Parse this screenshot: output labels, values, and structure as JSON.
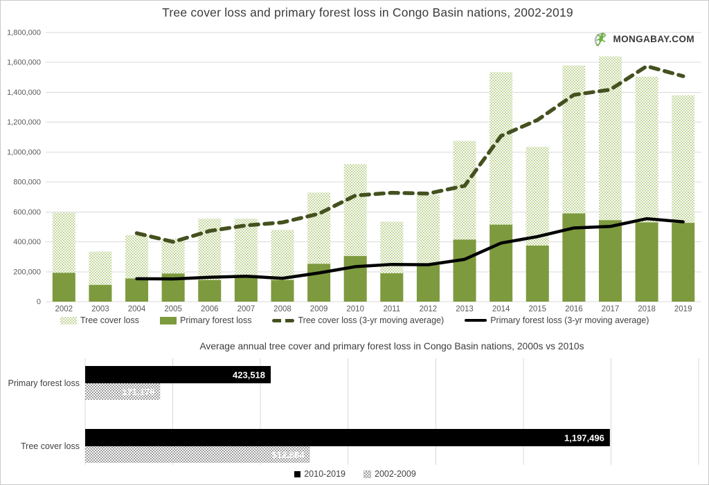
{
  "logo": {
    "text": "MONGABAY.COM",
    "icon": "gecko-icon",
    "green": "#6cb33f",
    "gray": "#b5b7b9"
  },
  "colors": {
    "hatch_green": "#c3d69b",
    "solid_green": "#7d9a3e",
    "dark_olive_dash": "#44511f",
    "black_line": "#000000",
    "hatch_gray": "#9b9b9b",
    "gridline": "#d9d9d9",
    "axis_text": "#595959",
    "title_text": "#3b3b3b",
    "bar_label_text": "#ffffff"
  },
  "chart_data": [
    {
      "type": "bar",
      "subtype": "overlaid-bars-with-moving-average-lines",
      "title": "Tree cover loss and primary forest loss in Congo Basin nations, 2002-2019",
      "categories": [
        "2002",
        "2003",
        "2004",
        "2005",
        "2006",
        "2007",
        "2008",
        "2009",
        "2010",
        "2011",
        "2012",
        "2013",
        "2014",
        "2015",
        "2016",
        "2017",
        "2018",
        "2019"
      ],
      "series": [
        {
          "name": "Tree cover loss",
          "type": "bar",
          "style": "hatched-light-green",
          "values": [
            595000,
            335000,
            445000,
            420000,
            555000,
            555000,
            480000,
            730000,
            920000,
            535000,
            715000,
            1075000,
            1535000,
            1035000,
            1580000,
            1640000,
            1505000,
            1380000
          ]
        },
        {
          "name": "Primary forest loss",
          "type": "bar",
          "style": "solid-green",
          "values": [
            193000,
            112000,
            155000,
            188000,
            145000,
            178000,
            145000,
            253000,
            305000,
            190000,
            245000,
            415000,
            515000,
            375000,
            590000,
            545000,
            530000,
            527000
          ]
        },
        {
          "name": "Tree cover loss (3-yr moving average)",
          "type": "line",
          "style": "dashed-dark-olive",
          "values": [
            null,
            null,
            458000,
            400000,
            473000,
            510000,
            530000,
            588000,
            710000,
            728000,
            723000,
            775000,
            1108000,
            1215000,
            1383000,
            1418000,
            1575000,
            1508000
          ]
        },
        {
          "name": "Primary forest loss (3-yr moving average)",
          "type": "line",
          "style": "solid-black",
          "values": [
            null,
            null,
            153000,
            152000,
            163000,
            170000,
            156000,
            192000,
            234000,
            249000,
            247000,
            283000,
            392000,
            435000,
            493000,
            503000,
            555000,
            534000
          ]
        }
      ],
      "ylim": [
        0,
        1800000
      ],
      "ytick_interval": 200000,
      "ytick_labels": [
        "0",
        "200,000",
        "400,000",
        "600,000",
        "800,000",
        "1,000,000",
        "1,200,000",
        "1,400,000",
        "1,600,000",
        "1,800,000"
      ],
      "grid": "horizontal",
      "legend_position": "bottom",
      "xlabel": "",
      "ylabel": ""
    },
    {
      "type": "bar",
      "orientation": "horizontal",
      "title": "Average annual tree cover and primary forest loss in Congo Basin nations, 2000s vs 2010s",
      "categories": [
        "Primary forest loss",
        "Tree cover loss"
      ],
      "series": [
        {
          "name": "2010-2019",
          "style": "solid-black",
          "values": [
            423518,
            1197496
          ],
          "labels": [
            "423,518",
            "1,197,496"
          ]
        },
        {
          "name": "2002-2009",
          "style": "hatched-gray",
          "values": [
            171176,
            512884
          ],
          "labels": [
            "171,176",
            "512,884"
          ]
        }
      ],
      "xlim": [
        0,
        1400000
      ],
      "xtick_interval": 200000,
      "grid": "vertical",
      "legend_position": "bottom",
      "xlabel": "",
      "ylabel": ""
    }
  ]
}
